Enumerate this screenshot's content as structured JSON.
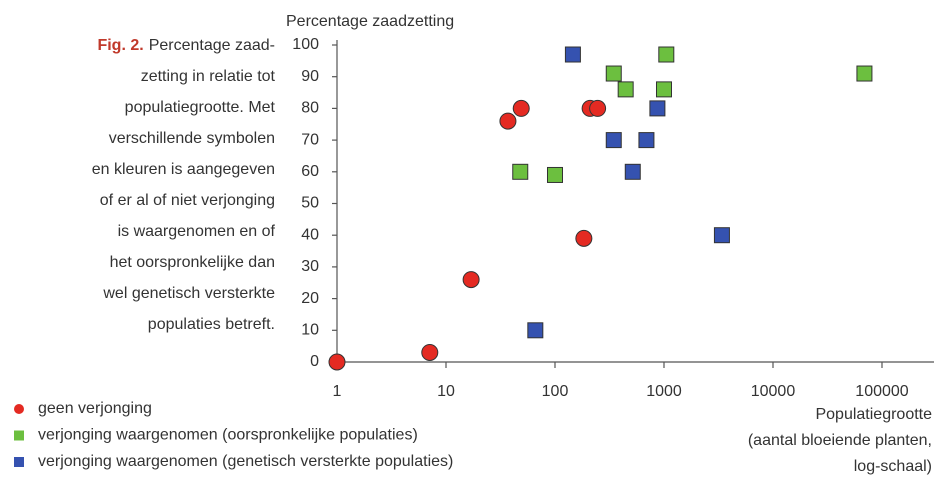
{
  "caption": {
    "label": "Fig. 2.",
    "lines": [
      "Percentage zaad-",
      "zetting in relatie tot",
      "populatiegrootte. Met",
      "verschillende symbolen",
      "en kleuren is aangegeven",
      "of er al of niet verjonging",
      "is waargenomen en of",
      "het oorspronkelijke dan",
      "wel genetisch versterkte",
      "populaties betreft."
    ]
  },
  "chart_data": {
    "type": "scatter",
    "y_label": "Percentage zaadzetting",
    "x_label": [
      "Populatiegrootte",
      "(aantal bloeiende planten,",
      "log-schaal)"
    ],
    "x_log": true,
    "xlim": [
      1,
      300000
    ],
    "xticks": [
      1,
      10,
      100,
      1000,
      10000,
      100000
    ],
    "ylim": [
      0,
      100
    ],
    "yticks": [
      0,
      10,
      20,
      30,
      40,
      50,
      60,
      70,
      80,
      90,
      100
    ],
    "grid": false,
    "series": [
      {
        "name": "geen verjonging",
        "color": "#e42a22",
        "marker": "circle",
        "x": [
          1,
          7.1,
          17,
          37,
          49,
          184,
          210,
          246
        ],
        "values": [
          0,
          3,
          26,
          76,
          80,
          39,
          80,
          80
        ]
      },
      {
        "name": "verjonging waargenomen (oorspronkelijke populaties)",
        "color": "#6cbf3f",
        "marker": "square",
        "x": [
          48,
          100,
          346,
          445,
          1000,
          1050,
          69000
        ],
        "values": [
          60,
          59,
          91,
          86,
          86,
          97,
          91
        ]
      },
      {
        "name": "verjonging waargenomen (genetisch versterkte populaties)",
        "color": "#3552b0",
        "marker": "square",
        "x": [
          66,
          146,
          346,
          517,
          690,
          870,
          3400
        ],
        "values": [
          10,
          97,
          70,
          60,
          70,
          80,
          40
        ]
      }
    ]
  }
}
